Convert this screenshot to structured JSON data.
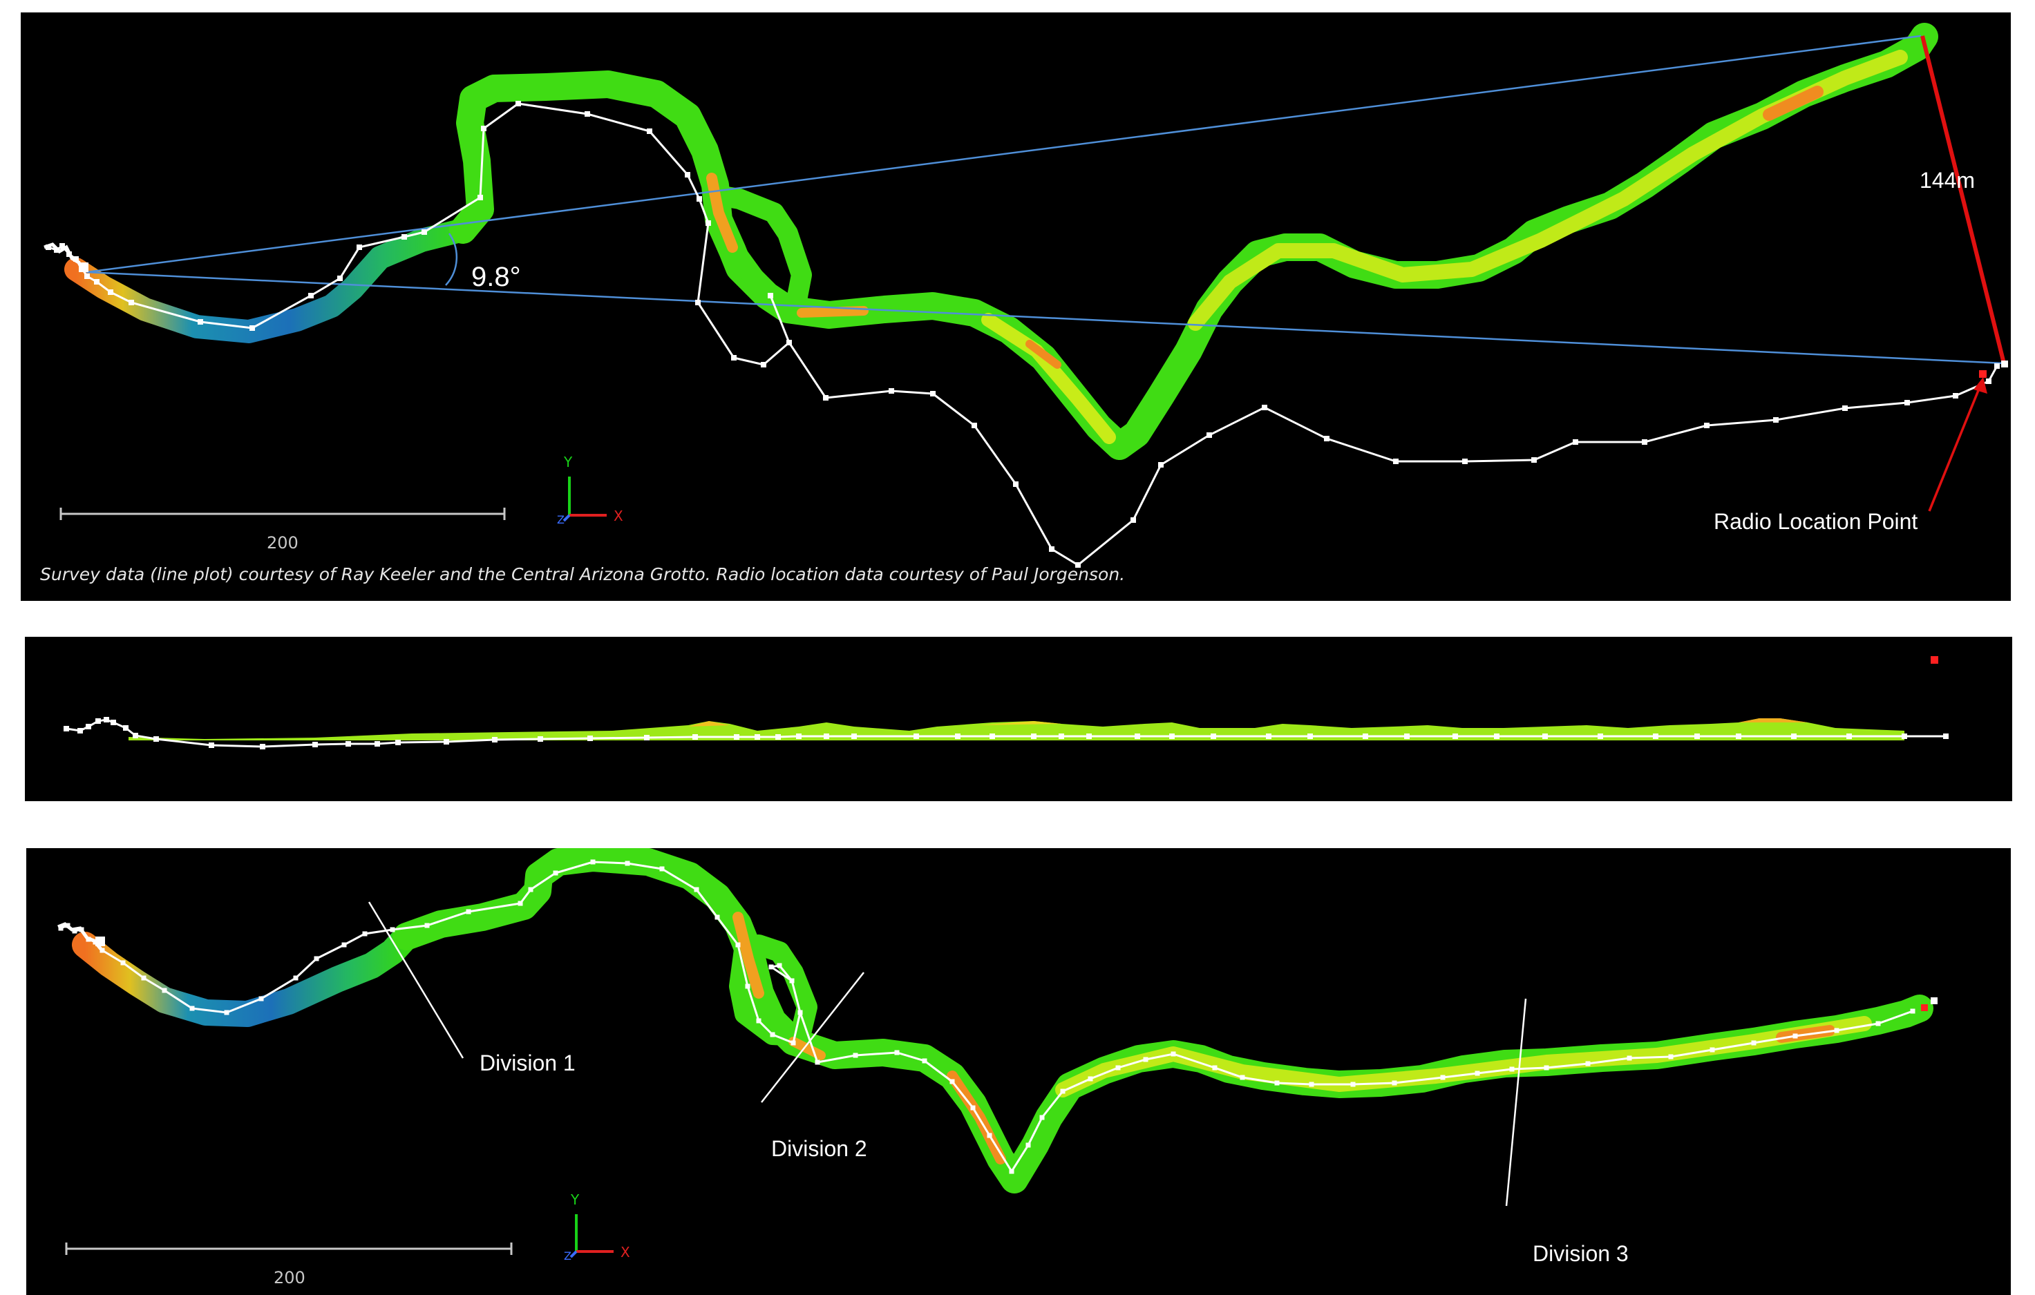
{
  "top_panel": {
    "angle_label": "9.8°",
    "distance_label": "144m",
    "radio_label": "Radio Location Point",
    "scale_label": "200",
    "credit": "Survey data (line plot) courtesy of Ray Keeler and the Central Arizona Grotto. Radio location data courtesy of Paul Jorgenson.",
    "axis_y": "Y",
    "axis_x": "X",
    "axis_z": "Z"
  },
  "middle_panel": {},
  "bottom_panel": {
    "division_1": "Division 1",
    "division_2": "Division 2",
    "division_3": "Division 3",
    "scale_label": "200",
    "axis_y": "Y",
    "axis_x": "X",
    "axis_z": "Z"
  },
  "colors": {
    "background": "#000000",
    "survey_line": "#ffffff",
    "sight_line": "#4f8fd8",
    "measure_line": "#e01010",
    "radio_point": "#ff2020",
    "tube_green": "#34d814",
    "tube_yellow": "#b8ec14",
    "tube_orange": "#f0a020",
    "tube_blue": "#1c70b8"
  }
}
